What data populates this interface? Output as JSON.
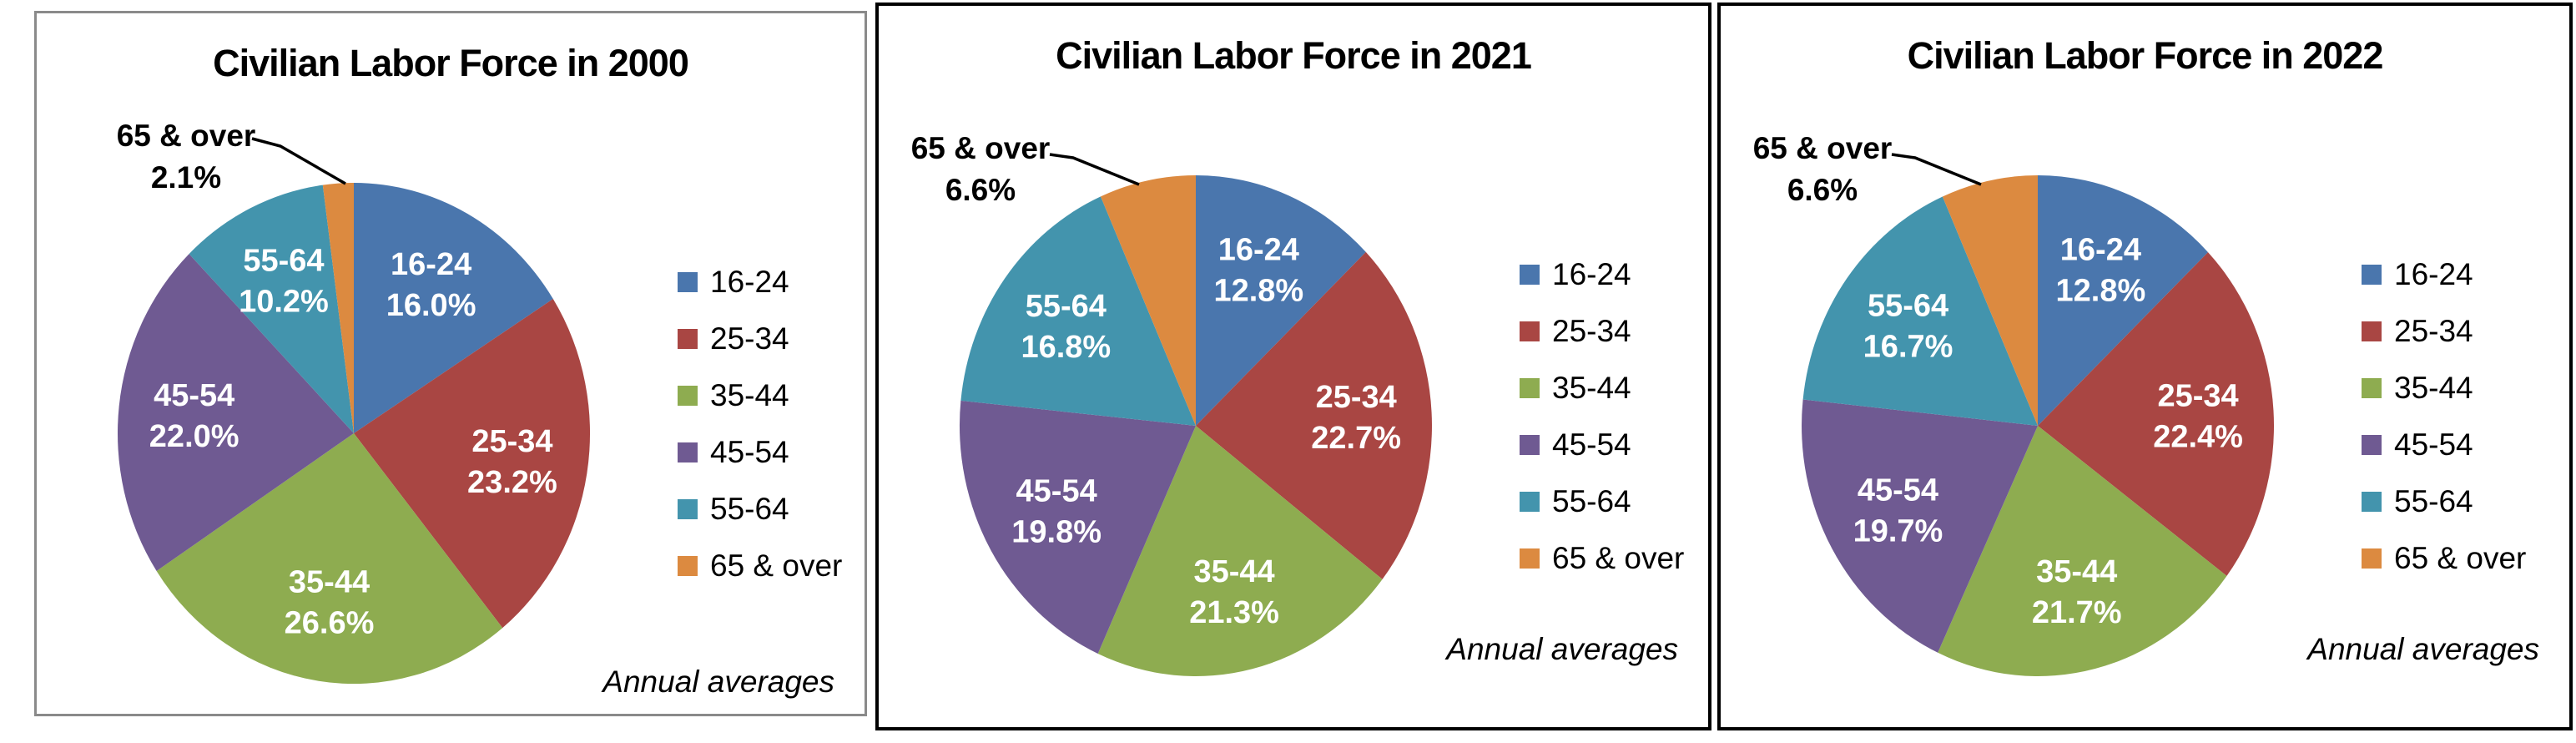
{
  "palette": [
    "#4A76AD",
    "#A94643",
    "#8EAC50",
    "#6F5A92",
    "#4394AD",
    "#DC8A40"
  ],
  "note": "Annual averages",
  "chart_data": [
    {
      "type": "pie",
      "title": "Civilian Labor Force in 2000",
      "categories": [
        "16-24",
        "25-34",
        "35-44",
        "45-54",
        "55-64",
        "65 & over"
      ],
      "values": [
        16.0,
        23.2,
        26.6,
        22.0,
        10.2,
        2.1
      ],
      "value_labels": [
        "16.0%",
        "23.2%",
        "26.6%",
        "22.0%",
        "10.2%",
        "2.1%"
      ],
      "legend_position": "right",
      "start_angle_deg": 0,
      "direction": "clockwise",
      "note": "Annual averages",
      "callout": {
        "category": "65 & over",
        "value_label": "2.1%"
      }
    },
    {
      "type": "pie",
      "title": "Civilian Labor Force in 2021",
      "categories": [
        "16-24",
        "25-34",
        "35-44",
        "45-54",
        "55-64",
        "65 & over"
      ],
      "values": [
        12.8,
        22.7,
        21.3,
        19.8,
        16.8,
        6.6
      ],
      "value_labels": [
        "12.8%",
        "22.7%",
        "21.3%",
        "19.8%",
        "16.8%",
        "6.6%"
      ],
      "legend_position": "right",
      "start_angle_deg": 0,
      "direction": "clockwise",
      "note": "Annual averages",
      "callout": {
        "category": "65 & over",
        "value_label": "6.6%"
      }
    },
    {
      "type": "pie",
      "title": "Civilian Labor Force in 2022",
      "categories": [
        "16-24",
        "25-34",
        "35-44",
        "45-54",
        "55-64",
        "65 & over"
      ],
      "values": [
        12.8,
        22.4,
        21.7,
        19.7,
        16.7,
        6.6
      ],
      "value_labels": [
        "12.8%",
        "22.4%",
        "21.7%",
        "19.7%",
        "16.7%",
        "6.6%"
      ],
      "legend_position": "right",
      "start_angle_deg": 0,
      "direction": "clockwise",
      "note": "Annual averages",
      "callout": {
        "category": "65 & over",
        "value_label": "6.6%"
      }
    }
  ]
}
